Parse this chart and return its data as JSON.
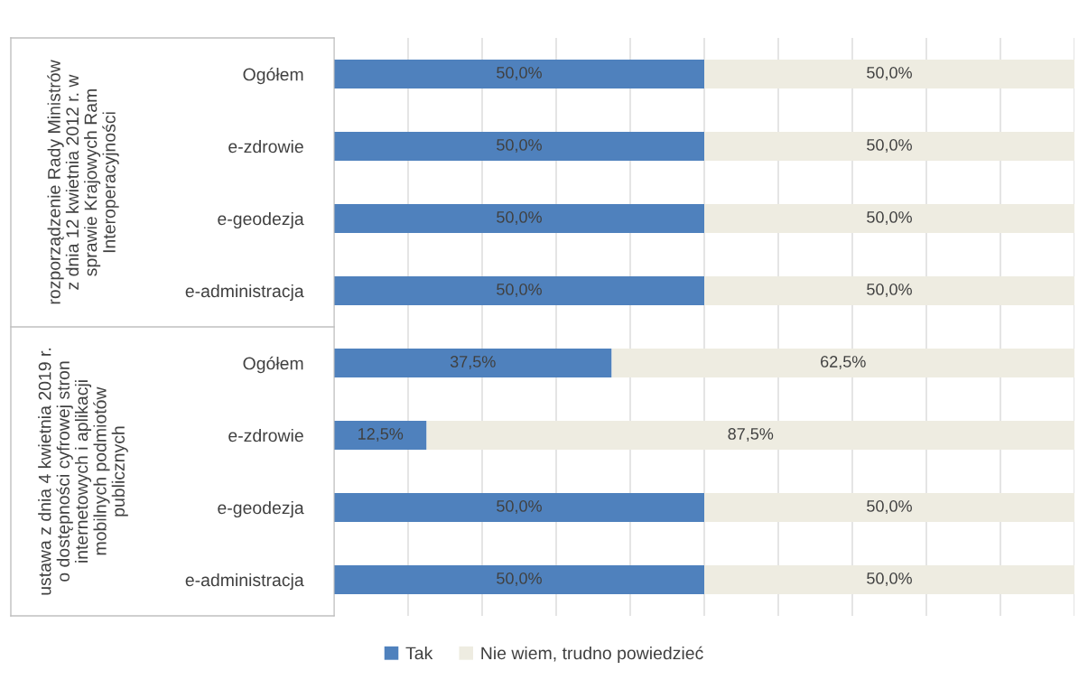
{
  "chart_data": {
    "type": "bar",
    "orientation": "horizontal",
    "stacked": true,
    "categories": [
      "Ogółem",
      "e-zdrowie",
      "e-geodezja",
      "e-administracja",
      "Ogółem",
      "e-zdrowie",
      "e-geodezja",
      "e-administracja"
    ],
    "series": [
      {
        "name": "Tak",
        "color": "#4f81bd",
        "values": [
          50.0,
          50.0,
          50.0,
          50.0,
          37.5,
          12.5,
          50.0,
          50.0
        ],
        "value_labels": [
          "50,0%",
          "50,0%",
          "50,0%",
          "50,0%",
          "37,5%",
          "12,5%",
          "50,0%",
          "50,0%"
        ]
      },
      {
        "name": "Nie wiem, trudno powiedzieć",
        "color": "#eeece1",
        "values": [
          50.0,
          50.0,
          50.0,
          50.0,
          62.5,
          87.5,
          50.0,
          50.0
        ],
        "value_labels": [
          "50,0%",
          "50,0%",
          "50,0%",
          "50,0%",
          "62,5%",
          "87,5%",
          "50,0%",
          "50,0%"
        ]
      }
    ],
    "tick_labels": "y",
    "grid": "x",
    "legend": "bottom",
    "annotations": [
      "rozporządzenie Rady Ministrów\nz dnia 12 kwietnia 2012 r. w\nsprawie Krajowych Ram\nInteroperacyjności",
      "ustawa z dnia 4 kwietnia 2019 r.\no dostępności cyfrowej stron\ninternetowych i aplikacji\nmobilnych podmiotów\npublicznych"
    ]
  }
}
